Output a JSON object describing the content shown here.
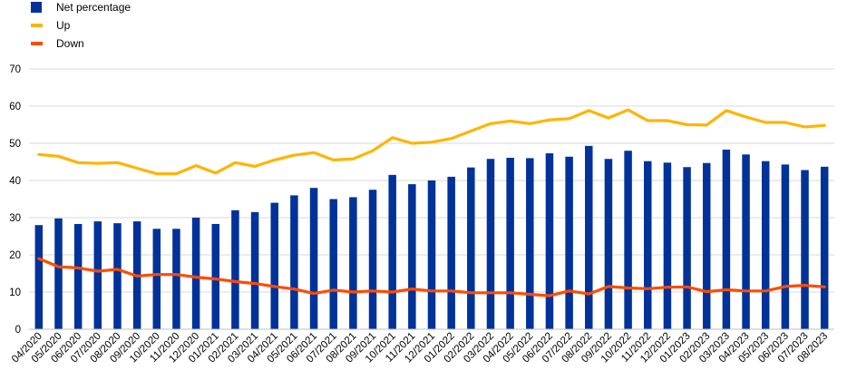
{
  "chart_data": {
    "type": "bar",
    "categories": [
      "04/2020",
      "05/2020",
      "06/2020",
      "07/2020",
      "08/2020",
      "09/2020",
      "10/2020",
      "11/2020",
      "12/2020",
      "01/2021",
      "02/2021",
      "03/2021",
      "04/2021",
      "05/2021",
      "06/2021",
      "07/2021",
      "08/2021",
      "09/2021",
      "10/2021",
      "11/2021",
      "12/2021",
      "01/2022",
      "02/2022",
      "03/2022",
      "04/2022",
      "05/2022",
      "06/2022",
      "07/2022",
      "08/2022",
      "09/2022",
      "10/2022",
      "11/2022",
      "12/2022",
      "01/2023",
      "02/2023",
      "03/2023",
      "04/2023",
      "05/2023",
      "06/2023",
      "07/2023",
      "08/2023"
    ],
    "series": [
      {
        "name": "Net percentage",
        "kind": "bar",
        "color": "#003299",
        "values": [
          28,
          29.8,
          28.3,
          29,
          28.5,
          29,
          27,
          27,
          30,
          28.3,
          32,
          31.5,
          34,
          36,
          38,
          35,
          35.5,
          37.5,
          41.5,
          39,
          40,
          41,
          43.5,
          45.8,
          46.1,
          46,
          47.3,
          46.4,
          49.3,
          45.8,
          48,
          45.2,
          44.8,
          43.6,
          44.7,
          48.3,
          47,
          45.2,
          44.3,
          42.8,
          43.7
        ]
      },
      {
        "name": "Up",
        "kind": "line",
        "color": "#FFB400",
        "values": [
          47,
          46.5,
          44.8,
          44.6,
          44.8,
          43.3,
          41.8,
          41.8,
          44,
          42,
          44.8,
          43.8,
          45.5,
          46.8,
          47.5,
          45.5,
          45.8,
          48,
          51.5,
          50,
          50.3,
          51.3,
          53.3,
          55.3,
          56,
          55.3,
          56.3,
          56.6,
          58.8,
          56.8,
          59,
          56.1,
          56.1,
          55,
          54.9,
          58.8,
          57.1,
          55.6,
          55.6,
          54.4,
          54.8
        ]
      },
      {
        "name": "Down",
        "kind": "line",
        "color": "#FF4B00",
        "values": [
          19,
          16.8,
          16.5,
          15.6,
          16.1,
          14.3,
          14.7,
          14.7,
          14,
          13.5,
          12.8,
          12.3,
          11.5,
          10.8,
          9.6,
          10.5,
          10,
          10.3,
          10,
          10.8,
          10.3,
          10.3,
          9.8,
          9.8,
          9.8,
          9.4,
          9,
          10.3,
          9.5,
          11.5,
          11.1,
          10.9,
          11.3,
          11.4,
          10.1,
          10.6,
          10.3,
          10.3,
          11.5,
          11.8,
          11.4
        ]
      }
    ],
    "ylim": [
      0,
      70
    ],
    "yticks": [
      0,
      10,
      20,
      30,
      40,
      50,
      60,
      70
    ],
    "grid": true,
    "legend_position": "top-left",
    "title": "",
    "xlabel": "",
    "ylabel": ""
  }
}
